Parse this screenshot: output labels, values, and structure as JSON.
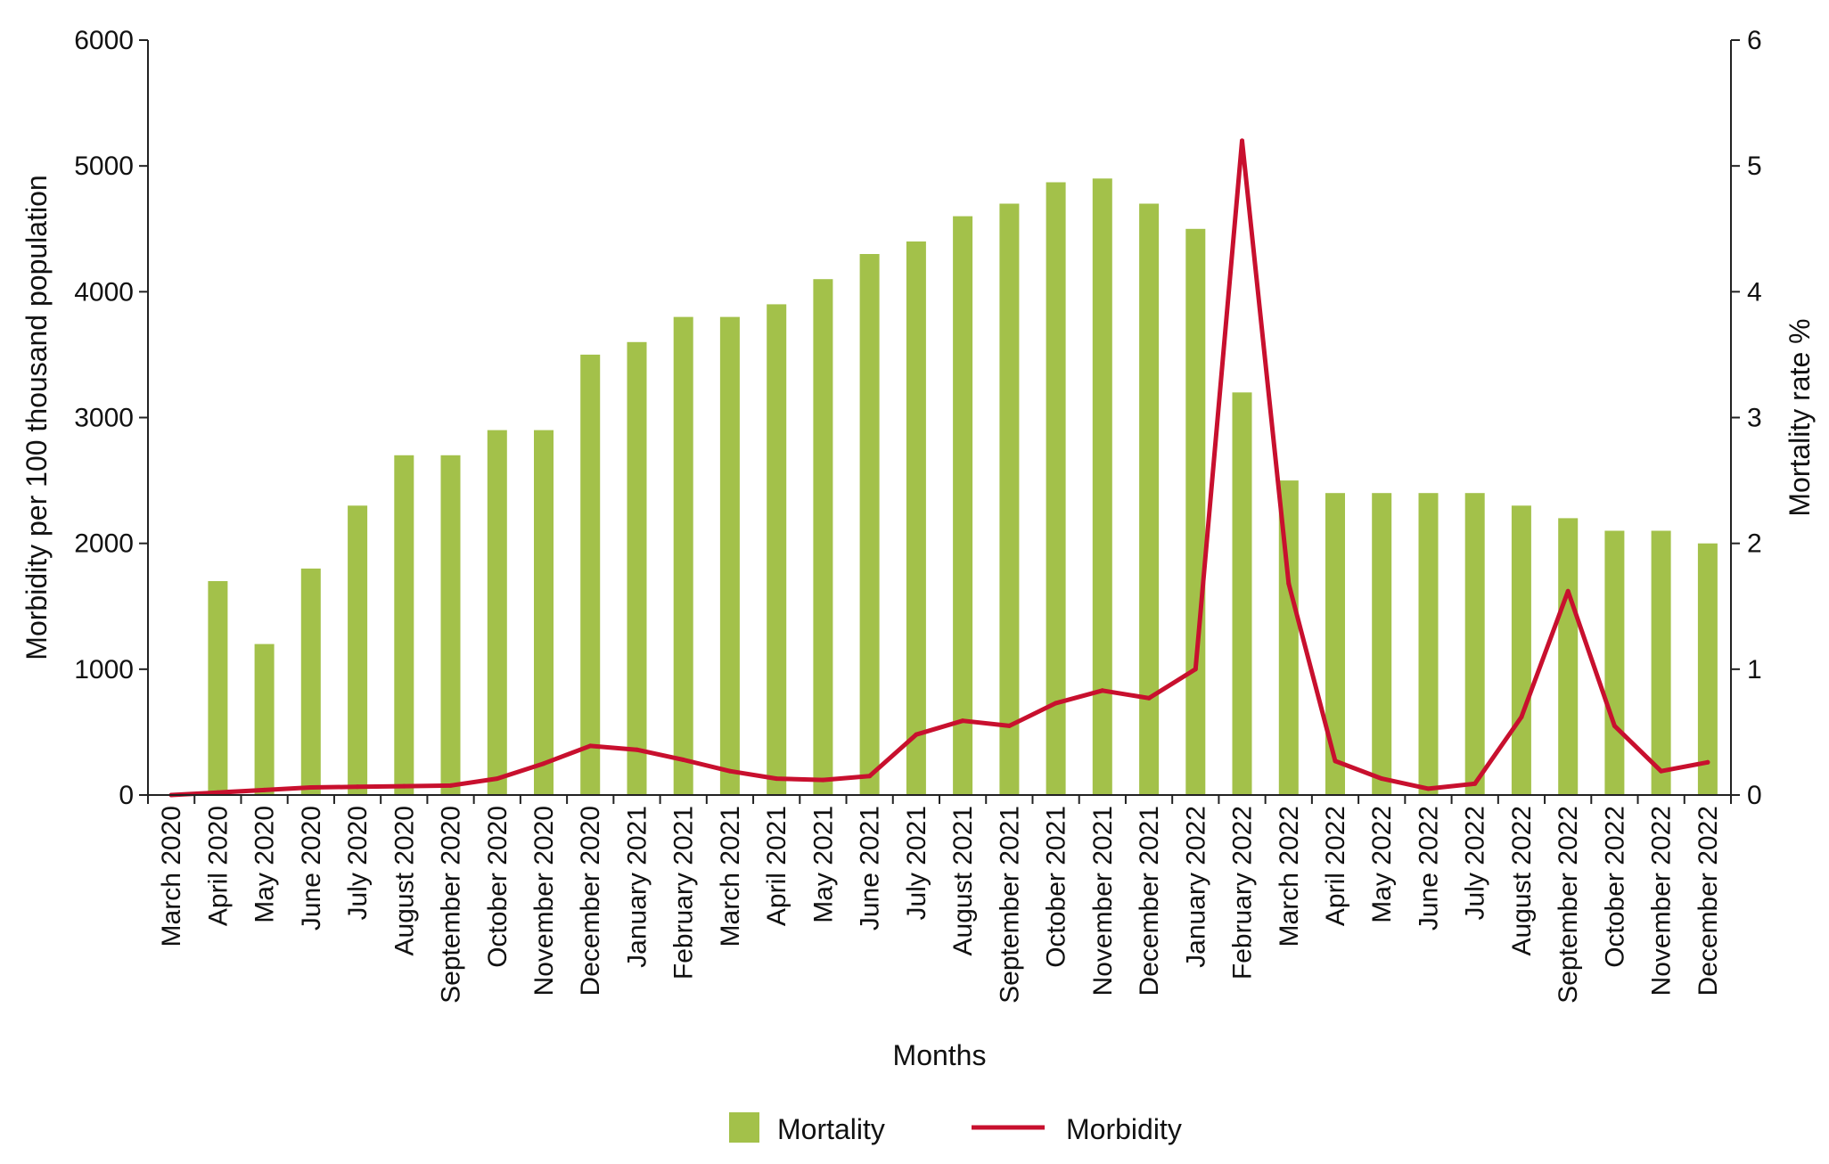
{
  "chart_data": {
    "type": "bar",
    "title": "",
    "xlabel": "Months",
    "ylabel": "Morbidity per 100 thousand population",
    "y2label": "Mortality rate %",
    "ylim": [
      0,
      6000
    ],
    "y2lim": [
      0,
      6
    ],
    "yticks": [
      "0",
      "1000",
      "2000",
      "3000",
      "4000",
      "5000",
      "6000"
    ],
    "y2ticks": [
      "0",
      "1",
      "2",
      "3",
      "4",
      "5",
      "6"
    ],
    "grid": false,
    "legend_position": "bottom-center",
    "categories": [
      "March 2020",
      "April 2020",
      "May 2020",
      "June 2020",
      "July 2020",
      "August 2020",
      "September 2020",
      "October 2020",
      "November 2020",
      "December 2020",
      "January 2021",
      "February 2021",
      "March 2021",
      "April 2021",
      "May 2021",
      "June 2021",
      "July 2021",
      "August 2021",
      "September 2021",
      "October 2021",
      "November 2021",
      "December 2021",
      "January 2022",
      "February 2022",
      "March 2022",
      "April 2022",
      "May 2022",
      "June 2022",
      "July 2022",
      "August 2022",
      "September 2022",
      "October 2022",
      "November 2022",
      "December 2022"
    ],
    "series": [
      {
        "name": "Mortality",
        "type": "bar",
        "axis": "right",
        "color": "#a3c14a",
        "values": [
          0,
          1.7,
          1.2,
          1.8,
          2.3,
          2.7,
          2.7,
          2.9,
          2.9,
          3.5,
          3.6,
          3.8,
          3.8,
          3.9,
          4.1,
          4.3,
          4.4,
          4.6,
          4.7,
          4.87,
          4.9,
          4.7,
          4.5,
          3.2,
          2.5,
          2.4,
          2.4,
          2.4,
          2.4,
          2.3,
          2.2,
          2.1,
          2.1,
          2.0
        ]
      },
      {
        "name": "Morbidity",
        "type": "line",
        "axis": "left",
        "color": "#c8102e",
        "values": [
          0,
          20,
          40,
          60,
          65,
          70,
          75,
          130,
          250,
          390,
          360,
          280,
          190,
          130,
          120,
          150,
          480,
          590,
          550,
          730,
          830,
          770,
          1000,
          5200,
          1680,
          270,
          130,
          50,
          90,
          620,
          1620,
          550,
          190,
          260
        ]
      }
    ]
  }
}
